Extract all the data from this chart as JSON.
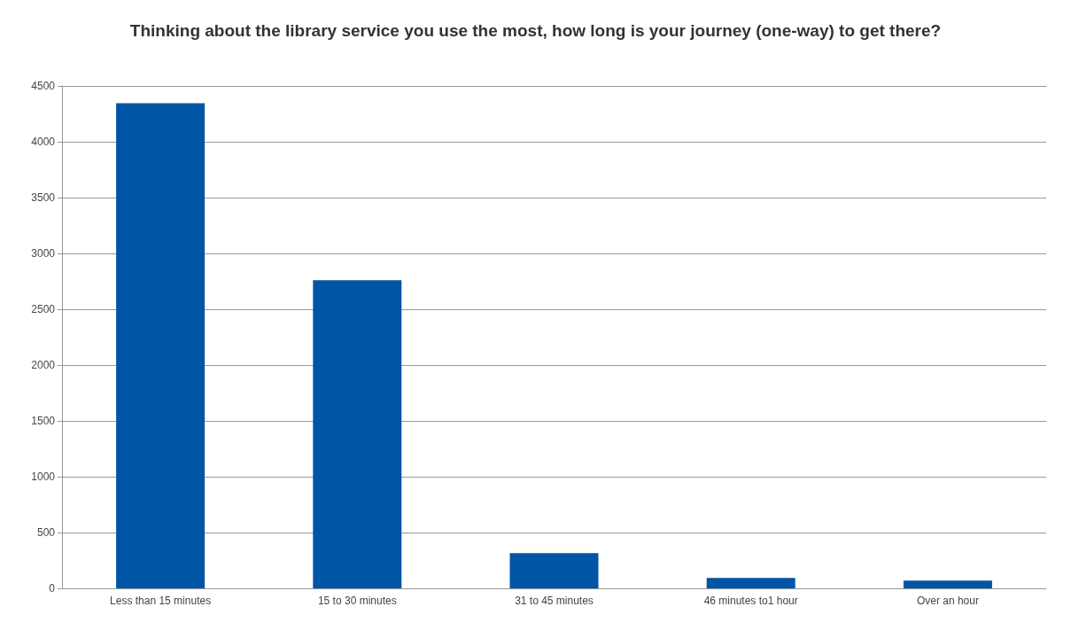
{
  "chart_data": {
    "type": "bar",
    "title": "Thinking about the library service you use the most, how long is your journey (one-way) to get there?",
    "categories": [
      "Less than 15 minutes",
      "15 to 30 minutes",
      "31 to 45 minutes",
      "46 minutes to1 hour",
      "Over an hour"
    ],
    "values": [
      4345,
      2760,
      316,
      93,
      70
    ],
    "color": "#0055a5",
    "ylim": [
      0,
      4500
    ],
    "yticks": [
      0,
      500,
      1000,
      1500,
      2000,
      2500,
      3000,
      3500,
      4000,
      4500
    ],
    "grid": "y"
  }
}
